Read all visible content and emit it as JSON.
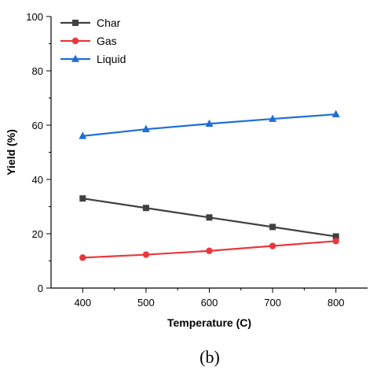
{
  "chart_data": {
    "type": "line",
    "x": [
      400,
      500,
      600,
      700,
      800
    ],
    "xlabel": "Temperature (C)",
    "ylabel": "Yield (%)",
    "xlim": [
      350,
      850
    ],
    "ylim": [
      0,
      100
    ],
    "xticks": [
      400,
      500,
      600,
      700,
      800
    ],
    "yticks": [
      0,
      20,
      40,
      60,
      80,
      100
    ],
    "grid": false,
    "legend_position": "top-left",
    "series": [
      {
        "name": "Char",
        "values": [
          33.0,
          29.5,
          26.0,
          22.5,
          19.0
        ],
        "color": "#404040",
        "marker": "square"
      },
      {
        "name": "Gas",
        "values": [
          11.2,
          12.3,
          13.7,
          15.5,
          17.3
        ],
        "color": "#e8383d",
        "marker": "circle"
      },
      {
        "name": "Liquid",
        "values": [
          56.0,
          58.5,
          60.5,
          62.3,
          64.0
        ],
        "color": "#1f6ed4",
        "marker": "triangle"
      }
    ]
  },
  "caption": "(b)"
}
